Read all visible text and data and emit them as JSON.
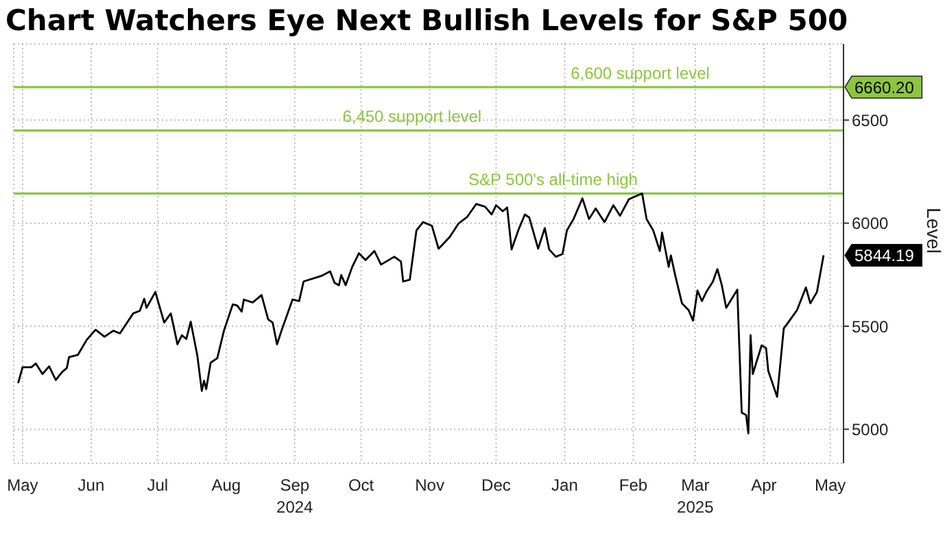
{
  "chart_data": {
    "type": "line",
    "title": "Chart Watchers Eye Next Bullish Levels for S&P 500",
    "ylabel": "Level",
    "x": [
      "2024-05-13",
      "2024-05-15",
      "2024-05-19",
      "2024-05-21",
      "2024-05-24",
      "2024-05-27",
      "2024-05-30",
      "2024-06-02",
      "2024-06-04",
      "2024-06-05",
      "2024-06-09",
      "2024-06-13",
      "2024-06-17",
      "2024-06-21",
      "2024-06-25",
      "2024-06-28",
      "2024-07-04",
      "2024-07-07",
      "2024-07-09",
      "2024-07-10",
      "2024-07-14",
      "2024-07-18",
      "2024-07-21",
      "2024-07-24",
      "2024-07-26",
      "2024-07-28",
      "2024-07-30",
      "2024-08-02",
      "2024-08-04",
      "2024-08-05",
      "2024-08-06",
      "2024-08-08",
      "2024-08-11",
      "2024-08-14",
      "2024-08-18",
      "2024-08-20",
      "2024-08-22",
      "2024-08-23",
      "2024-08-27",
      "2024-08-31",
      "2024-09-03",
      "2024-09-05",
      "2024-09-07",
      "2024-09-09",
      "2024-09-14",
      "2024-09-17",
      "2024-09-19",
      "2024-09-27",
      "2024-10-01",
      "2024-10-03",
      "2024-10-05",
      "2024-10-06",
      "2024-10-08",
      "2024-10-11",
      "2024-10-14",
      "2024-10-17",
      "2024-10-21",
      "2024-10-24",
      "2024-10-30",
      "2024-11-02",
      "2024-11-03",
      "2024-11-06",
      "2024-11-09",
      "2024-11-12",
      "2024-11-16",
      "2024-11-19",
      "2024-11-24",
      "2024-11-28",
      "2024-12-02",
      "2024-12-06",
      "2024-12-10",
      "2024-12-13",
      "2024-12-15",
      "2024-12-18",
      "2024-12-20",
      "2024-12-22",
      "2024-12-25",
      "2024-12-28",
      "2024-12-30",
      "2025-01-03",
      "2025-01-06",
      "2025-01-08",
      "2025-01-11",
      "2025-01-14",
      "2025-01-16",
      "2025-01-19",
      "2025-01-23",
      "2025-01-26",
      "2025-01-29",
      "2025-02-02",
      "2025-02-06",
      "2025-02-09",
      "2025-02-13",
      "2025-02-19",
      "2025-02-21",
      "2025-02-24",
      "2025-02-27",
      "2025-02-28",
      "2025-03-03",
      "2025-03-04",
      "2025-03-06",
      "2025-03-09",
      "2025-03-12",
      "2025-03-14",
      "2025-03-16",
      "2025-03-18",
      "2025-03-20",
      "2025-03-23",
      "2025-03-25",
      "2025-03-27",
      "2025-03-29",
      "2025-04-03",
      "2025-04-05",
      "2025-04-07",
      "2025-04-08",
      "2025-04-09",
      "2025-04-10",
      "2025-04-14",
      "2025-04-16",
      "2025-04-17",
      "2025-04-21",
      "2025-04-24",
      "2025-04-27",
      "2025-04-30",
      "2025-05-04",
      "2025-05-06",
      "2025-05-09",
      "2025-05-12"
    ],
    "series": [
      {
        "color": "#000000",
        "values": [
          5224,
          5301,
          5301,
          5319,
          5268,
          5305,
          5239,
          5279,
          5297,
          5350,
          5361,
          5434,
          5483,
          5449,
          5478,
          5465,
          5562,
          5575,
          5633,
          5589,
          5666,
          5518,
          5562,
          5412,
          5456,
          5438,
          5522,
          5356,
          5186,
          5235,
          5195,
          5323,
          5345,
          5478,
          5606,
          5600,
          5571,
          5629,
          5615,
          5651,
          5533,
          5518,
          5412,
          5478,
          5629,
          5622,
          5717,
          5744,
          5766,
          5710,
          5699,
          5748,
          5699,
          5788,
          5854,
          5821,
          5865,
          5799,
          5837,
          5814,
          5717,
          5726,
          5965,
          6005,
          5987,
          5876,
          5932,
          5998,
          6031,
          6093,
          6080,
          6042,
          6087,
          6058,
          6076,
          5872,
          5965,
          6042,
          6027,
          5876,
          5976,
          5872,
          5837,
          5850,
          5965,
          6020,
          6120,
          6020,
          6071,
          6005,
          6087,
          6036,
          6116,
          6144,
          6020,
          5965,
          5865,
          5954,
          5788,
          5843,
          5744,
          5611,
          5578,
          5527,
          5673,
          5622,
          5666,
          5717,
          5777,
          5699,
          5589,
          5677,
          5080,
          5069,
          4980,
          5456,
          5268,
          5407,
          5394,
          5283,
          5157,
          5489,
          5533,
          5578,
          5688,
          5611,
          5666,
          5844.19
        ]
      }
    ],
    "xlim": [
      "2024-05-11",
      "2025-05-21"
    ],
    "xticks": [
      {
        "value": "2024-05-15",
        "label": "May"
      },
      {
        "value": "2024-06-15",
        "label": "Jun"
      },
      {
        "value": "2024-07-15",
        "label": "Jul"
      },
      {
        "value": "2024-08-15",
        "label": "Aug"
      },
      {
        "value": "2024-09-15",
        "label": "Sep\n2024"
      },
      {
        "value": "2024-10-15",
        "label": "Oct"
      },
      {
        "value": "2024-11-15",
        "label": "Nov"
      },
      {
        "value": "2024-12-15",
        "label": "Dec"
      },
      {
        "value": "2025-01-15",
        "label": "Jan"
      },
      {
        "value": "2025-02-15",
        "label": "Feb"
      },
      {
        "value": "2025-03-15",
        "label": "Mar\n2025"
      },
      {
        "value": "2025-04-15",
        "label": "Apr"
      },
      {
        "value": "2025-05-15",
        "label": "May"
      }
    ],
    "ylim": [
      4835,
      6870
    ],
    "yticks": [
      5000,
      5500,
      6000,
      6500
    ],
    "ref_lines": [
      {
        "axis": "y",
        "value": 6660.2,
        "label": "6,600 support level",
        "color": "#8cc63f"
      },
      {
        "axis": "y",
        "value": 6450,
        "label": "6,450 support level",
        "color": "#8cc63f"
      },
      {
        "axis": "y",
        "value": 6144,
        "label": "S&P 500's all-time high",
        "color": "#8cc63f"
      }
    ],
    "annotations": [
      {
        "text": "6660.20",
        "x": "2025-05-21",
        "y": 6660.2
      },
      {
        "text": "5844.19",
        "x": "2025-05-12",
        "y": 5844.19
      }
    ],
    "grid": true,
    "marker": "none",
    "line_style": "solid"
  }
}
